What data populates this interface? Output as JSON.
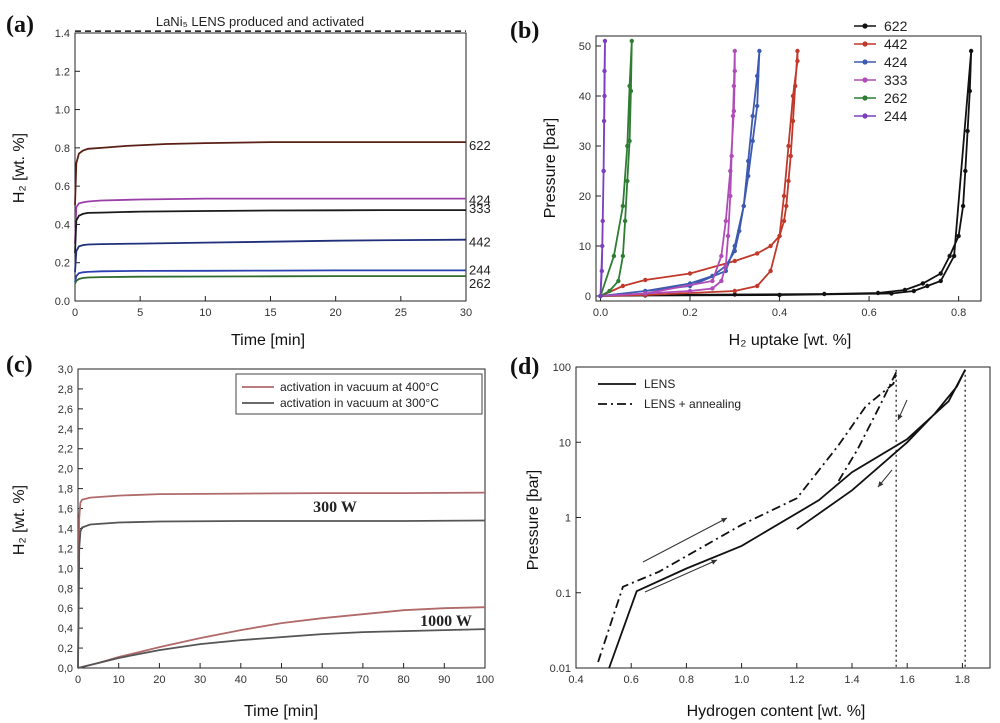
{
  "panels": {
    "a": {
      "letter": "(a)",
      "annotation": "LaNi₅ LENS produced and activated",
      "xlabel": "Time [min]",
      "ylabel": "H₂ [wt. %]"
    },
    "b": {
      "letter": "(b)",
      "xlabel": "H₂ uptake [wt. %]",
      "ylabel": "Pressure [bar]"
    },
    "c": {
      "letter": "(c)",
      "xlabel": "Time [min]",
      "ylabel": "H₂ [wt. %]",
      "label_300": "300 W",
      "label_1000": "1000 W"
    },
    "d": {
      "letter": "(d)",
      "xlabel": "Hydrogen content [wt. %]",
      "ylabel": "Pressure [bar]"
    }
  },
  "chart_data": [
    {
      "id": "a",
      "type": "line",
      "title": "",
      "xlabel": "Time [min]",
      "ylabel": "H₂ [wt. %]",
      "xlim": [
        0,
        30
      ],
      "ylim": [
        0,
        1.4
      ],
      "xticks": [
        0,
        5,
        10,
        15,
        20,
        25,
        30
      ],
      "yticks": [
        0.0,
        0.2,
        0.4,
        0.6,
        0.8,
        1.0,
        1.2,
        1.4
      ],
      "reference_line": {
        "y": 1.41,
        "label": "LaNi₅ LENS produced and activated",
        "style": "dashed"
      },
      "series": [
        {
          "name": "622",
          "color": "#5a1f14",
          "x": [
            0,
            0.1,
            0.3,
            0.6,
            1,
            2,
            4,
            7,
            10,
            15,
            20,
            25,
            30
          ],
          "y": [
            0.5,
            0.72,
            0.77,
            0.785,
            0.795,
            0.8,
            0.81,
            0.82,
            0.825,
            0.83,
            0.83,
            0.83,
            0.83
          ]
        },
        {
          "name": "424",
          "color": "#9b3fa8",
          "x": [
            0,
            0.1,
            0.3,
            0.6,
            1,
            2,
            5,
            10,
            15,
            20,
            25,
            30
          ],
          "y": [
            0.3,
            0.49,
            0.51,
            0.515,
            0.52,
            0.525,
            0.53,
            0.535,
            0.535,
            0.535,
            0.535,
            0.535
          ]
        },
        {
          "name": "333",
          "color": "#1a1a1a",
          "x": [
            0,
            0.1,
            0.3,
            0.6,
            1,
            2,
            5,
            10,
            15,
            20,
            25,
            30
          ],
          "y": [
            0.25,
            0.42,
            0.445,
            0.455,
            0.46,
            0.462,
            0.467,
            0.47,
            0.473,
            0.474,
            0.475,
            0.475
          ]
        },
        {
          "name": "442",
          "color": "#1f2f7a",
          "x": [
            0,
            0.1,
            0.3,
            0.6,
            1,
            2,
            5,
            10,
            15,
            20,
            25,
            30
          ],
          "y": [
            0.15,
            0.26,
            0.285,
            0.292,
            0.295,
            0.297,
            0.3,
            0.305,
            0.31,
            0.315,
            0.318,
            0.32
          ]
        },
        {
          "name": "244",
          "color": "#2a3fb0",
          "x": [
            0,
            0.1,
            0.3,
            0.6,
            1,
            2,
            5,
            10,
            15,
            20,
            25,
            30
          ],
          "y": [
            0.1,
            0.13,
            0.145,
            0.15,
            0.152,
            0.155,
            0.157,
            0.158,
            0.159,
            0.16,
            0.16,
            0.16
          ]
        },
        {
          "name": "262",
          "color": "#2f6b2f",
          "x": [
            0,
            0.1,
            0.3,
            0.6,
            1,
            2,
            5,
            10,
            15,
            20,
            25,
            30
          ],
          "y": [
            0.09,
            0.105,
            0.115,
            0.12,
            0.123,
            0.125,
            0.127,
            0.128,
            0.129,
            0.13,
            0.13,
            0.13
          ]
        }
      ]
    },
    {
      "id": "b",
      "type": "line",
      "title": "",
      "xlabel": "H₂ uptake [wt. %]",
      "ylabel": "Pressure [bar]",
      "xlim": [
        -0.01,
        0.85
      ],
      "ylim": [
        -1,
        52
      ],
      "xticks": [
        0.0,
        0.2,
        0.4,
        0.6,
        0.8
      ],
      "yticks": [
        0,
        10,
        20,
        30,
        40,
        50
      ],
      "legend": "top-right",
      "series": [
        {
          "name": "622",
          "color": "#111111",
          "x": [
            0.0,
            0.1,
            0.3,
            0.5,
            0.62,
            0.68,
            0.72,
            0.76,
            0.78,
            0.8,
            0.81,
            0.815,
            0.82,
            0.825,
            0.828,
            0.79,
            0.76,
            0.73,
            0.7,
            0.65,
            0.4,
            0.1,
            0.0
          ],
          "y": [
            0,
            0.2,
            0.3,
            0.4,
            0.6,
            1.2,
            2.5,
            4.5,
            8,
            12,
            18,
            25,
            33,
            41,
            49,
            8,
            3,
            2,
            1,
            0.5,
            0.2,
            0.1,
            0
          ]
        },
        {
          "name": "442",
          "color": "#c0392b",
          "x": [
            0.0,
            0.05,
            0.1,
            0.2,
            0.3,
            0.35,
            0.38,
            0.4,
            0.41,
            0.415,
            0.42,
            0.425,
            0.43,
            0.435,
            0.44,
            0.44,
            0.43,
            0.42,
            0.41,
            0.4,
            0.38,
            0.35,
            0.3,
            0.1,
            0.0
          ],
          "y": [
            0,
            2,
            3.2,
            4.5,
            7,
            8.5,
            10,
            12,
            15,
            18,
            23,
            28,
            35,
            42,
            49,
            47,
            40,
            30,
            20,
            12,
            5,
            2,
            1,
            0.2,
            0
          ]
        },
        {
          "name": "424",
          "color": "#3d5ab0",
          "x": [
            0.0,
            0.1,
            0.2,
            0.25,
            0.28,
            0.3,
            0.31,
            0.32,
            0.33,
            0.34,
            0.35,
            0.355,
            0.35,
            0.34,
            0.33,
            0.32,
            0.3,
            0.28,
            0.2,
            0.0
          ],
          "y": [
            0,
            1,
            2.5,
            4,
            6,
            9,
            13,
            18,
            24,
            31,
            38,
            49,
            44,
            36,
            27,
            18,
            10,
            5,
            2,
            0
          ]
        },
        {
          "name": "333",
          "color": "#b04cb8",
          "x": [
            0.0,
            0.1,
            0.2,
            0.25,
            0.27,
            0.28,
            0.285,
            0.29,
            0.293,
            0.296,
            0.298,
            0.3,
            0.3,
            0.298,
            0.29,
            0.28,
            0.27,
            0.25,
            0.1,
            0.0
          ],
          "y": [
            0,
            0.5,
            1,
            1.5,
            3,
            6,
            12,
            20,
            28,
            36,
            42,
            49,
            45,
            37,
            25,
            15,
            8,
            3,
            0.5,
            0
          ]
        },
        {
          "name": "262",
          "color": "#2e7d32",
          "x": [
            0.0,
            0.02,
            0.04,
            0.05,
            0.055,
            0.06,
            0.065,
            0.068,
            0.07,
            0.065,
            0.06,
            0.05,
            0.03,
            0.0
          ],
          "y": [
            0,
            1,
            3,
            8,
            15,
            23,
            31,
            41,
            51,
            42,
            30,
            18,
            8,
            0
          ]
        },
        {
          "name": "244",
          "color": "#7b3fc0",
          "x": [
            0.0,
            0.003,
            0.005,
            0.007,
            0.008,
            0.009,
            0.01,
            0.009,
            0.007,
            0.004,
            0.0
          ],
          "y": [
            0,
            5,
            15,
            25,
            35,
            45,
            51,
            40,
            25,
            10,
            0
          ]
        }
      ]
    },
    {
      "id": "c",
      "type": "line",
      "title": "",
      "xlabel": "Time [min]",
      "ylabel": "H₂ [wt. %]",
      "xlim": [
        0,
        100
      ],
      "ylim": [
        0,
        3.0
      ],
      "xticks": [
        0,
        10,
        20,
        30,
        40,
        50,
        60,
        70,
        80,
        90,
        100
      ],
      "yticks": [
        0.0,
        0.2,
        0.4,
        0.6,
        0.8,
        1.0,
        1.2,
        1.4,
        1.6,
        1.8,
        2.0,
        2.2,
        2.4,
        2.6,
        2.8,
        3.0
      ],
      "ytick_labels": [
        "0,0",
        "0,2",
        "0,4",
        "0,6",
        "0,8",
        "1,0",
        "1,2",
        "1,4",
        "1,6",
        "1,8",
        "2,0",
        "2,2",
        "2,4",
        "2,6",
        "2,8",
        "3,0"
      ],
      "legend": "top-right",
      "series": [
        {
          "name": "activation in vacuum at 400°C",
          "group": "300 W",
          "color": "#b06a6a",
          "x": [
            0,
            0.3,
            0.6,
            1,
            3,
            10,
            20,
            40,
            60,
            80,
            100
          ],
          "y": [
            0,
            1.5,
            1.66,
            1.69,
            1.71,
            1.73,
            1.745,
            1.75,
            1.755,
            1.755,
            1.76
          ]
        },
        {
          "name": "activation in vacuum at 300°C",
          "group": "300 W",
          "color": "#555555",
          "x": [
            0,
            0.3,
            0.6,
            1,
            3,
            10,
            20,
            40,
            60,
            80,
            100
          ],
          "y": [
            0,
            1.2,
            1.37,
            1.41,
            1.44,
            1.46,
            1.47,
            1.475,
            1.475,
            1.475,
            1.48
          ]
        },
        {
          "name": "activation in vacuum at 400°C",
          "group": "1000 W",
          "color": "#b06a6a",
          "x": [
            0,
            5,
            10,
            15,
            20,
            30,
            40,
            50,
            60,
            70,
            80,
            90,
            100
          ],
          "y": [
            0,
            0.05,
            0.11,
            0.16,
            0.21,
            0.3,
            0.38,
            0.45,
            0.5,
            0.54,
            0.58,
            0.6,
            0.61
          ]
        },
        {
          "name": "activation in vacuum at 300°C",
          "group": "1000 W",
          "color": "#555555",
          "x": [
            0,
            5,
            10,
            15,
            20,
            30,
            40,
            50,
            60,
            70,
            80,
            90,
            100
          ],
          "y": [
            0,
            0.05,
            0.1,
            0.14,
            0.18,
            0.24,
            0.28,
            0.31,
            0.34,
            0.36,
            0.37,
            0.38,
            0.39
          ]
        }
      ]
    },
    {
      "id": "d",
      "type": "line",
      "title": "",
      "xlabel": "Hydrogen content [wt. %]",
      "ylabel": "Pressure [bar]",
      "xlim": [
        0.4,
        1.9
      ],
      "ylim": [
        0.01,
        100
      ],
      "yscale": "log",
      "xticks": [
        0.4,
        0.6,
        0.8,
        1.0,
        1.2,
        1.4,
        1.6,
        1.8
      ],
      "yticks": [
        0.01,
        0.1,
        1,
        10,
        100
      ],
      "legend": "top-left",
      "series": [
        {
          "name": "LENS",
          "style": "solid",
          "color": "#111111",
          "x": [
            0.52,
            0.62,
            0.8,
            1.0,
            1.28,
            1.4,
            1.6,
            1.75,
            1.81,
            1.78,
            1.7,
            1.6,
            1.4,
            1.2
          ],
          "y": [
            0.01,
            0.105,
            0.21,
            0.42,
            1.7,
            4,
            11,
            35,
            92,
            55,
            24,
            10,
            2.3,
            0.7
          ]
        },
        {
          "name": "LENS + annealing",
          "style": "dashdot",
          "color": "#111111",
          "x": [
            0.48,
            0.57,
            0.7,
            1.0,
            1.2,
            1.35,
            1.45,
            1.55,
            1.56,
            1.5,
            1.42,
            1.35
          ],
          "y": [
            0.012,
            0.12,
            0.19,
            0.8,
            1.8,
            9,
            30,
            60,
            85,
            30,
            8,
            3
          ]
        }
      ],
      "annotations": [
        {
          "type": "vline",
          "x": 1.56,
          "style": "dotted"
        },
        {
          "type": "vline",
          "x": 1.81,
          "style": "dotted"
        }
      ]
    }
  ]
}
